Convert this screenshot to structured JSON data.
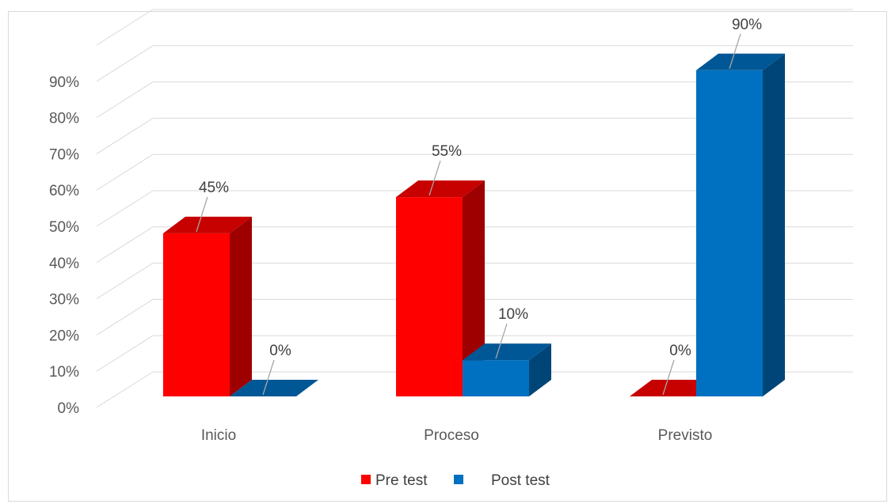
{
  "chart_data": {
    "type": "bar",
    "title": "",
    "xlabel": "",
    "ylabel": "",
    "categories": [
      "Inicio",
      "Proceso",
      "Previsto"
    ],
    "series": [
      {
        "name": "Pre test",
        "values": [
          45,
          55,
          0
        ],
        "labels": [
          "45%",
          "55%",
          "0%"
        ],
        "color": "#ff0000"
      },
      {
        "name": "Post test",
        "values": [
          0,
          10,
          90
        ],
        "labels": [
          "0%",
          "10%",
          "90%"
        ],
        "color": "#0070c0"
      }
    ],
    "yticks": [
      "0%",
      "10%",
      "20%",
      "30%",
      "40%",
      "50%",
      "60%",
      "70%",
      "80%",
      "90%"
    ],
    "ylim": [
      0,
      100
    ],
    "grid": true,
    "legend_position": "bottom",
    "bar_style": "3d"
  }
}
